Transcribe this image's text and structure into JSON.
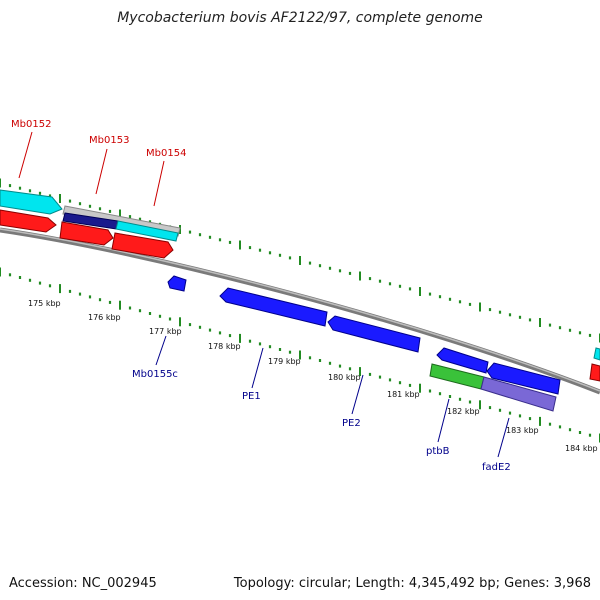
{
  "title": "Mycobacterium bovis AF2122/97, complete genome",
  "footer": {
    "accession": "Accession: NC_002945",
    "stats": "Topology: circular; Length: 4,345,492 bp; Genes: 3,968"
  },
  "colors": {
    "backbone": "#8c8c8c",
    "tick": "#228b22",
    "forward_label": "#cc0000",
    "reverse_label": "#00008b",
    "kbp_label": "#111111"
  },
  "kbp_labels": [
    "175 kbp",
    "176 kbp",
    "177 kbp",
    "178 kbp",
    "179 kbp",
    "180 kbp",
    "181 kbp",
    "182 kbp",
    "183 kbp",
    "184 kbp"
  ],
  "forward_gene_labels": [
    "Mb0152",
    "Mb0153",
    "Mb0154"
  ],
  "reverse_gene_labels": [
    "Mb0155c",
    "PE1",
    "PE2",
    "ptbB",
    "fadE2"
  ]
}
